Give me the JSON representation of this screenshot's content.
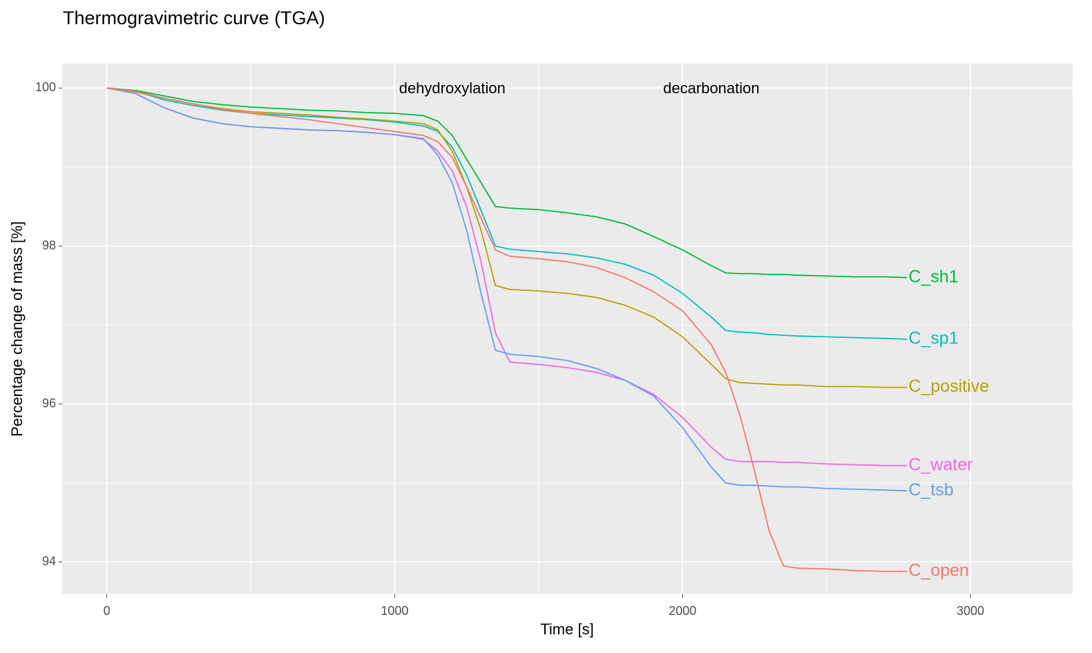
{
  "chart_data": {
    "type": "line",
    "title": "Thermogravimetric curve (TGA)",
    "x_label": "Time [s]",
    "y_label": "Percentage change of mass [%]",
    "xlim": [
      -155,
      3355
    ],
    "ylim": [
      93.59,
      100.31
    ],
    "xticks": [
      0,
      1000,
      2000,
      3000
    ],
    "yticks": [
      94,
      96,
      98,
      100
    ],
    "x_minor": [
      500,
      1500,
      2500
    ],
    "y_minor": [
      95,
      97,
      99
    ],
    "grid": true,
    "annotations": [
      {
        "text": "dehydroxylation",
        "x": 1200,
        "y": 100
      },
      {
        "text": "decarbonation",
        "x": 2100,
        "y": 100
      }
    ],
    "x": [
      0,
      100,
      200,
      300,
      400,
      500,
      600,
      700,
      800,
      900,
      1000,
      1100,
      1150,
      1200,
      1250,
      1300,
      1350,
      1400,
      1500,
      1600,
      1700,
      1800,
      1900,
      2000,
      2100,
      2150,
      2200,
      2250,
      2300,
      2350,
      2400,
      2500,
      2600,
      2700,
      2780
    ],
    "series": [
      {
        "name": "C_sh1",
        "color": "#00BA38",
        "values": [
          100,
          99.97,
          99.9,
          99.83,
          99.79,
          99.76,
          99.74,
          99.72,
          99.71,
          99.69,
          99.68,
          99.65,
          99.58,
          99.4,
          99.1,
          98.8,
          98.5,
          98.48,
          98.46,
          98.42,
          98.37,
          98.28,
          98.12,
          97.95,
          97.75,
          97.66,
          97.65,
          97.65,
          97.64,
          97.64,
          97.63,
          97.62,
          97.61,
          97.61,
          97.6
        ]
      },
      {
        "name": "C_sp1",
        "color": "#00BFC4",
        "values": [
          100,
          99.96,
          99.85,
          99.78,
          99.72,
          99.68,
          99.66,
          99.64,
          99.62,
          99.6,
          99.57,
          99.52,
          99.45,
          99.25,
          98.9,
          98.45,
          98.0,
          97.96,
          97.93,
          97.9,
          97.85,
          97.77,
          97.63,
          97.4,
          97.1,
          96.93,
          96.91,
          96.9,
          96.88,
          96.87,
          96.86,
          96.85,
          96.84,
          96.83,
          96.82
        ]
      },
      {
        "name": "C_positive",
        "color": "#B79F00",
        "values": [
          100,
          99.96,
          99.87,
          99.8,
          99.74,
          99.7,
          99.68,
          99.66,
          99.63,
          99.61,
          99.58,
          99.55,
          99.47,
          99.2,
          98.75,
          98.2,
          97.5,
          97.45,
          97.43,
          97.4,
          97.35,
          97.25,
          97.1,
          96.85,
          96.5,
          96.32,
          96.27,
          96.26,
          96.25,
          96.24,
          96.24,
          96.22,
          96.22,
          96.21,
          96.21
        ]
      },
      {
        "name": "C_water",
        "color": "#F564E3",
        "values": [
          100,
          99.93,
          99.75,
          99.62,
          99.55,
          99.51,
          99.49,
          99.47,
          99.46,
          99.44,
          99.41,
          99.35,
          99.2,
          98.95,
          98.5,
          97.8,
          96.9,
          96.53,
          96.5,
          96.46,
          96.4,
          96.3,
          96.12,
          95.83,
          95.45,
          95.3,
          95.27,
          95.27,
          95.27,
          95.26,
          95.26,
          95.24,
          95.23,
          95.22,
          95.22
        ]
      },
      {
        "name": "C_tsb",
        "color": "#619CFF",
        "values": [
          100,
          99.93,
          99.75,
          99.62,
          99.55,
          99.51,
          99.49,
          99.47,
          99.46,
          99.44,
          99.41,
          99.36,
          99.15,
          98.8,
          98.2,
          97.4,
          96.68,
          96.63,
          96.6,
          96.55,
          96.45,
          96.3,
          96.1,
          95.7,
          95.2,
          95.0,
          94.97,
          94.97,
          94.96,
          94.95,
          94.95,
          94.93,
          94.92,
          94.91,
          94.9
        ]
      },
      {
        "name": "C_open",
        "color": "#F8766D",
        "values": [
          100,
          99.95,
          99.87,
          99.8,
          99.73,
          99.68,
          99.64,
          99.6,
          99.55,
          99.5,
          99.45,
          99.4,
          99.32,
          99.12,
          98.75,
          98.35,
          97.95,
          97.87,
          97.84,
          97.8,
          97.73,
          97.6,
          97.42,
          97.18,
          96.75,
          96.4,
          95.85,
          95.15,
          94.4,
          93.95,
          93.92,
          93.91,
          93.89,
          93.88,
          93.88
        ]
      }
    ]
  }
}
